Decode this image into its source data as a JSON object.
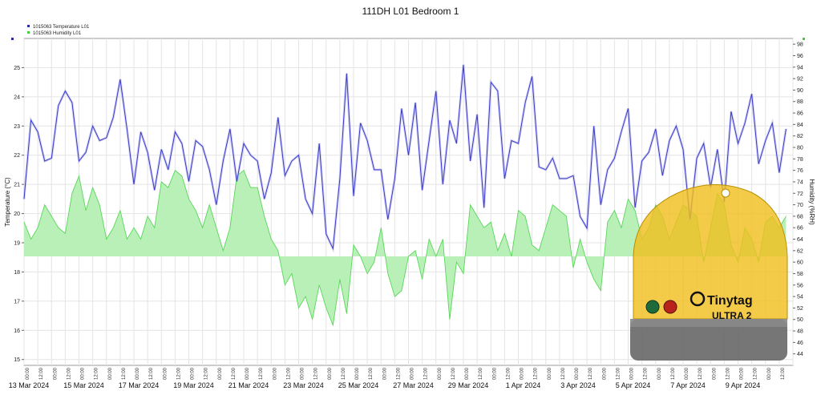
{
  "chart_data": {
    "type": "line",
    "title": "111DH L01 Bedroom 1",
    "ylabel_left": "Temperature (°C)",
    "ylabel_right": "Humidity (%RH)",
    "ylim_left": [
      14.8,
      26.0
    ],
    "ylim_right": [
      42,
      99
    ],
    "left_ticks": [
      15,
      16,
      17,
      18,
      19,
      20,
      21,
      22,
      23,
      24,
      25
    ],
    "right_ticks": [
      44,
      46,
      48,
      50,
      52,
      54,
      56,
      58,
      60,
      62,
      64,
      66,
      68,
      70,
      72,
      74,
      76,
      78,
      80,
      82,
      84,
      86,
      88,
      90,
      92,
      94,
      96,
      98
    ],
    "x_date_labels": [
      "13 Mar 2024",
      "15 Mar 2024",
      "17 Mar 2024",
      "19 Mar 2024",
      "21 Mar 2024",
      "23 Mar 2024",
      "25 Mar 2024",
      "27 Mar 2024",
      "29 Mar 2024",
      "1 Apr 2024",
      "3 Apr 2024",
      "5 Apr 2024",
      "7 Apr 2024",
      "9 Apr 2024"
    ],
    "x_hour_labels": [
      "00:00",
      "12:00"
    ],
    "grid": true,
    "legend_position": "top-left",
    "series": [
      {
        "name": "1015063  Temperature L01",
        "axis": "left",
        "color": "#3b3bc8",
        "x_days": [
          0,
          0.25,
          0.5,
          0.75,
          1,
          1.25,
          1.5,
          1.75,
          2,
          2.25,
          2.5,
          2.75,
          3,
          3.25,
          3.5,
          3.75,
          4,
          4.25,
          4.5,
          4.75,
          5,
          5.25,
          5.5,
          5.75,
          6,
          6.25,
          6.5,
          6.75,
          7,
          7.25,
          7.5,
          7.75,
          8,
          8.25,
          8.5,
          8.75,
          9,
          9.25,
          9.5,
          9.75,
          10,
          10.25,
          10.5,
          10.75,
          11,
          11.25,
          11.5,
          11.75,
          12,
          12.25,
          12.5,
          12.75,
          13,
          13.25,
          13.5,
          13.75,
          14,
          14.25,
          14.5,
          14.75,
          15,
          15.25,
          15.5,
          15.75,
          16,
          16.25,
          16.5,
          16.75,
          17,
          17.25,
          17.5,
          17.75,
          18,
          18.25,
          18.5,
          18.75,
          19,
          19.25,
          19.5,
          19.75,
          20,
          20.25,
          20.5,
          20.75,
          21,
          21.25,
          21.5,
          21.75,
          22,
          22.25,
          22.5,
          22.75,
          23,
          23.25,
          23.5,
          23.75,
          24,
          24.25,
          24.5,
          24.75,
          25,
          25.25,
          25.5,
          25.75,
          26,
          26.25,
          26.5,
          26.75,
          27,
          27.25,
          27.5,
          27.75
        ],
        "values": [
          20.5,
          23.2,
          22.8,
          21.8,
          21.9,
          23.7,
          24.2,
          23.8,
          21.8,
          22.1,
          23.0,
          22.5,
          22.6,
          23.3,
          24.6,
          22.9,
          21.0,
          22.8,
          22.1,
          20.8,
          22.2,
          21.5,
          22.8,
          22.4,
          21.1,
          22.5,
          22.3,
          21.5,
          20.3,
          21.8,
          22.9,
          21.1,
          22.4,
          22.0,
          21.8,
          20.5,
          21.4,
          23.3,
          21.3,
          21.8,
          22.0,
          20.5,
          20.0,
          22.4,
          19.3,
          18.8,
          21.2,
          24.8,
          20.6,
          23.1,
          22.5,
          21.5,
          21.5,
          19.8,
          21.2,
          23.6,
          22.0,
          23.8,
          20.8,
          22.5,
          24.2,
          21.0,
          23.2,
          22.4,
          25.1,
          21.8,
          23.4,
          20.2,
          24.5,
          24.2,
          21.2,
          22.5,
          22.4,
          23.8,
          24.7,
          21.6,
          21.5,
          21.9,
          21.2,
          21.2,
          21.3,
          19.9,
          19.5,
          23.0,
          20.3,
          21.5,
          21.9,
          22.8,
          23.6,
          20.2,
          21.8,
          22.1,
          22.9,
          21.3,
          22.5,
          23.0,
          22.2,
          19.8,
          21.9,
          22.4,
          20.9,
          22.2,
          20.4,
          23.5,
          22.4,
          23.1,
          24.1,
          21.7,
          22.5,
          23.1,
          21.4,
          22.9
        ]
      },
      {
        "name": "1015063  Humidity L01",
        "axis": "right",
        "color": "#59d659",
        "fill": "#b8f0b8",
        "baseline": 61,
        "x_days": [
          0,
          0.25,
          0.5,
          0.75,
          1,
          1.25,
          1.5,
          1.75,
          2,
          2.25,
          2.5,
          2.75,
          3,
          3.25,
          3.5,
          3.75,
          4,
          4.25,
          4.5,
          4.75,
          5,
          5.25,
          5.5,
          5.75,
          6,
          6.25,
          6.5,
          6.75,
          7,
          7.25,
          7.5,
          7.75,
          8,
          8.25,
          8.5,
          8.75,
          9,
          9.25,
          9.5,
          9.75,
          10,
          10.25,
          10.5,
          10.75,
          11,
          11.25,
          11.5,
          11.75,
          12,
          12.25,
          12.5,
          12.75,
          13,
          13.25,
          13.5,
          13.75,
          14,
          14.25,
          14.5,
          14.75,
          15,
          15.25,
          15.5,
          15.75,
          16,
          16.25,
          16.5,
          16.75,
          17,
          17.25,
          17.5,
          17.75,
          18,
          18.25,
          18.5,
          18.75,
          19,
          19.25,
          19.5,
          19.75,
          20,
          20.25,
          20.5,
          20.75,
          21,
          21.25,
          21.5,
          21.75,
          22,
          22.25,
          22.5,
          22.75,
          23,
          23.25,
          23.5,
          23.75,
          24,
          24.25,
          24.5,
          24.75,
          25,
          25.25,
          25.5,
          25.75,
          26,
          26.25,
          26.5,
          26.75,
          27,
          27.25,
          27.5,
          27.75
        ],
        "values": [
          67,
          64,
          66,
          70,
          68,
          66,
          65,
          72,
          75,
          69,
          73,
          70,
          64,
          66,
          69,
          64,
          66,
          64,
          68,
          66,
          74,
          73,
          76,
          75,
          71,
          69,
          66,
          70,
          66,
          62,
          66,
          75,
          76,
          73,
          73,
          68,
          64,
          62,
          56,
          58,
          52,
          54,
          50,
          56,
          52,
          49,
          57,
          51,
          63,
          61,
          58,
          60,
          66,
          58,
          54,
          55,
          61,
          62,
          57,
          64,
          61,
          64,
          50,
          60,
          58,
          70,
          68,
          66,
          67,
          62,
          65,
          61,
          69,
          68,
          63,
          62,
          66,
          70,
          69,
          68,
          59,
          64,
          60,
          57,
          55,
          67,
          69,
          66,
          71,
          69,
          64,
          66,
          70,
          68,
          64,
          67,
          70,
          69,
          68,
          60,
          66,
          72,
          70,
          63,
          60,
          66,
          64,
          60,
          67,
          68,
          66,
          68
        ]
      }
    ]
  },
  "device": {
    "brand": "Tinytag",
    "model": "ULTRA 2"
  }
}
